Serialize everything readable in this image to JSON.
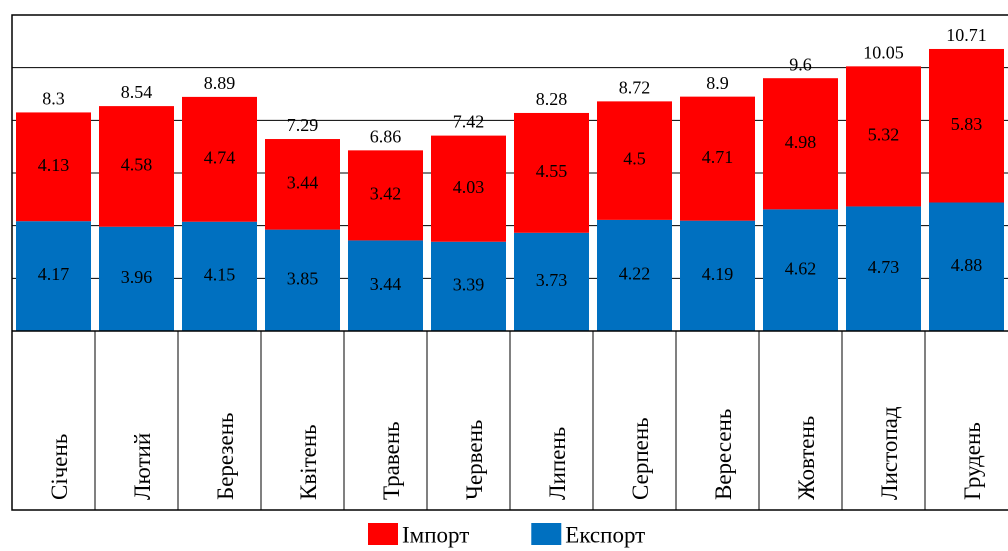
{
  "chart_data": {
    "type": "stacked-bar",
    "categories": [
      "Січень",
      "Лютий",
      "Березень",
      "Квітень",
      "Травень",
      "Червень",
      "Липень",
      "Серпень",
      "Вересень",
      "Жовтень",
      "Листопад",
      "Грудень"
    ],
    "series": [
      {
        "name": "Імпорт",
        "color": "#ff0000",
        "values": [
          4.13,
          4.58,
          4.74,
          3.44,
          3.42,
          4.03,
          4.55,
          4.5,
          4.71,
          4.98,
          5.32,
          5.83
        ]
      },
      {
        "name": "Експорт",
        "color": "#0070c0",
        "values": [
          4.17,
          3.96,
          4.15,
          3.85,
          3.44,
          3.39,
          3.73,
          4.22,
          4.19,
          4.62,
          4.73,
          4.88
        ]
      }
    ],
    "totals": [
      8.3,
      8.54,
      8.89,
      7.29,
      6.86,
      7.42,
      8.28,
      8.72,
      8.9,
      9.6,
      10.05,
      10.71
    ],
    "ylim": [
      0,
      12
    ],
    "yticks": [
      0,
      2,
      4,
      6,
      8,
      10,
      12
    ],
    "grid": true,
    "legend": "bottom"
  }
}
